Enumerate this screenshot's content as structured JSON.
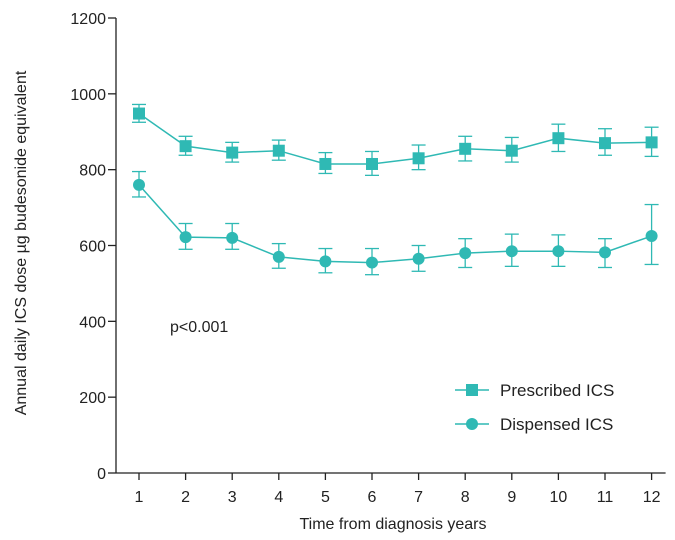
{
  "chart_data": {
    "type": "line",
    "title": "",
    "xlabel": "Time from diagnosis years",
    "ylabel": "Annual daily ICS dose  µg budesonide equivalent",
    "x": [
      1,
      2,
      3,
      4,
      5,
      6,
      7,
      8,
      9,
      10,
      11,
      12
    ],
    "x_tick_labels": [
      "1",
      "2",
      "3",
      "4",
      "5",
      "6",
      "7",
      "8",
      "9",
      "10",
      "11",
      "12"
    ],
    "xlim": [
      0.5,
      12.5
    ],
    "ylim": [
      0,
      1200
    ],
    "y_ticks": [
      0,
      200,
      400,
      600,
      800,
      1000,
      1200
    ],
    "y_tick_labels": [
      "0",
      "200",
      "400",
      "600",
      "800",
      "1000",
      "1200"
    ],
    "grid": false,
    "legend_position": "bottom-right",
    "annotation": "p<0.001",
    "series": [
      {
        "name": "Prescribed ICS",
        "marker": "square",
        "color": "#2fb9b4",
        "values": [
          948,
          862,
          845,
          850,
          815,
          815,
          830,
          855,
          850,
          883,
          870,
          872
        ],
        "error_low": [
          925,
          838,
          820,
          825,
          790,
          785,
          800,
          823,
          820,
          848,
          838,
          835
        ],
        "error_high": [
          972,
          888,
          872,
          878,
          845,
          848,
          865,
          888,
          885,
          920,
          908,
          912
        ]
      },
      {
        "name": "Dispensed ICS",
        "marker": "circle",
        "color": "#2fb9b4",
        "values": [
          760,
          622,
          620,
          570,
          558,
          555,
          565,
          580,
          585,
          585,
          582,
          625
        ],
        "error_low": [
          728,
          590,
          590,
          540,
          528,
          523,
          532,
          542,
          545,
          545,
          542,
          550
        ],
        "error_high": [
          795,
          658,
          658,
          605,
          592,
          592,
          600,
          618,
          630,
          628,
          618,
          708
        ]
      }
    ]
  },
  "colors": {
    "series": "#2fb9b4",
    "axis": "#222222"
  }
}
